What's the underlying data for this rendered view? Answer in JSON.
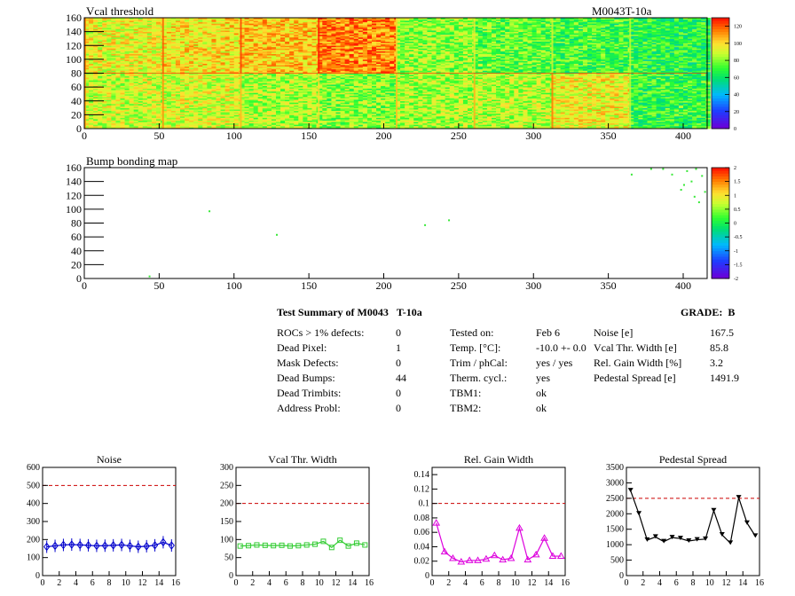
{
  "colors": {
    "map_red": "#e8481c",
    "map_yellow": "#f2e63a",
    "map_green": "#6ede2a",
    "noise_series": "#0000cc",
    "vcal_series": "#33cc33",
    "gain_series": "#dd00dd",
    "pedestal_series": "#000000",
    "limit_line": "#cc0000"
  },
  "module_id": "M0043T-10a",
  "summary": {
    "title": "Test Summary of M0043",
    "title_suffix": "T-10a",
    "grade_label": "GRADE:",
    "grade": "B",
    "left": [
      {
        "label": "ROCs > 1% defects:",
        "value": "0"
      },
      {
        "label": "Dead Pixel:",
        "value": "1"
      },
      {
        "label": "Mask Defects:",
        "value": "0"
      },
      {
        "label": "Dead Bumps:",
        "value": "44"
      },
      {
        "label": "Dead Trimbits:",
        "value": "0"
      },
      {
        "label": "Address Probl:",
        "value": "0"
      }
    ],
    "middle": [
      {
        "label": "Tested on:",
        "value": "Feb 6"
      },
      {
        "label": "Temp. [°C]:",
        "value": "-10.0 +- 0.0"
      },
      {
        "label": "Trim / phCal:",
        "value": "yes / yes"
      },
      {
        "label": "Therm. cycl.:",
        "value": "yes"
      },
      {
        "label": "TBM1:",
        "value": "ok"
      },
      {
        "label": "TBM2:",
        "value": "ok"
      }
    ],
    "right": [
      {
        "label": "Noise [e]",
        "value": "167.5"
      },
      {
        "label": "Vcal Thr. Width [e]",
        "value": "85.8"
      },
      {
        "label": "Rel. Gain Width [%]",
        "value": "3.2"
      },
      {
        "label": "Pedestal Spread [e]",
        "value": "1491.9"
      }
    ]
  },
  "chart_data": [
    {
      "type": "heatmap",
      "title": "Vcal threshold",
      "x_ticks": [
        "0",
        "50",
        "100",
        "150",
        "200",
        "250",
        "300",
        "350",
        "400"
      ],
      "y_ticks": [
        "0",
        "20",
        "40",
        "60",
        "80",
        "100",
        "120",
        "140",
        "160"
      ],
      "xlim": [
        0,
        416
      ],
      "ylim": [
        0,
        160
      ],
      "zlim": [
        0,
        130
      ],
      "z_ticks": [
        "0",
        "20",
        "40",
        "60",
        "80",
        "100",
        "120"
      ],
      "roc_mean_levels": {
        "bottom_row": [
          90,
          92,
          86,
          80,
          85,
          87,
          96,
          70
        ],
        "top_row": [
          95,
          100,
          104,
          115,
          82,
          76,
          72,
          68
        ]
      }
    },
    {
      "type": "heatmap",
      "title": "Bump bonding map",
      "x_ticks": [
        "0",
        "50",
        "100",
        "150",
        "200",
        "250",
        "300",
        "350",
        "400"
      ],
      "y_ticks": [
        "0",
        "20",
        "40",
        "60",
        "80",
        "100",
        "120",
        "140",
        "160"
      ],
      "xlim": [
        0,
        416
      ],
      "ylim": [
        0,
        160
      ],
      "zlim": [
        -2,
        2
      ],
      "z_ticks": [
        "-2",
        "-1.5",
        "-1",
        "-0.5",
        "0",
        "0.5",
        "1",
        "1.5",
        "2"
      ],
      "points": [
        [
          43,
          3
        ],
        [
          83,
          97
        ],
        [
          128,
          63
        ],
        [
          227,
          77
        ],
        [
          243,
          84
        ],
        [
          365,
          150
        ],
        [
          378,
          158
        ],
        [
          386,
          158
        ],
        [
          392,
          150
        ],
        [
          400,
          135
        ],
        [
          402,
          155
        ],
        [
          405,
          140
        ],
        [
          408,
          158
        ],
        [
          410,
          110
        ],
        [
          398,
          128
        ],
        [
          412,
          148
        ],
        [
          414,
          125
        ],
        [
          407,
          118
        ]
      ]
    },
    {
      "type": "line",
      "title": "Noise",
      "x_ticks": [
        "0",
        "2",
        "4",
        "6",
        "8",
        "10",
        "12",
        "14",
        "16"
      ],
      "y_ticks": [
        "0",
        "100",
        "200",
        "300",
        "400",
        "500",
        "600"
      ],
      "xlim": [
        0,
        16
      ],
      "ylim": [
        0,
        600
      ],
      "limit": 500,
      "series": [
        {
          "x": [
            0.5,
            1.5,
            2.5,
            3.5,
            4.5,
            5.5,
            6.5,
            7.5,
            8.5,
            9.5,
            10.5,
            11.5,
            12.5,
            13.5,
            14.5,
            15.5
          ],
          "values": [
            160,
            165,
            170,
            172,
            170,
            168,
            165,
            166,
            168,
            170,
            165,
            160,
            163,
            168,
            185,
            167
          ]
        }
      ]
    },
    {
      "type": "line",
      "title": "Vcal Thr. Width",
      "x_ticks": [
        "0",
        "2",
        "4",
        "6",
        "8",
        "10",
        "12",
        "14",
        "16"
      ],
      "y_ticks": [
        "0",
        "50",
        "100",
        "150",
        "200",
        "250",
        "300"
      ],
      "xlim": [
        0,
        16
      ],
      "ylim": [
        0,
        300
      ],
      "limit": 200,
      "series": [
        {
          "x": [
            0.5,
            1.5,
            2.5,
            3.5,
            4.5,
            5.5,
            6.5,
            7.5,
            8.5,
            9.5,
            10.5,
            11.5,
            12.5,
            13.5,
            14.5,
            15.5
          ],
          "values": [
            82,
            83,
            85,
            84,
            83,
            84,
            82,
            83,
            85,
            87,
            95,
            78,
            98,
            82,
            90,
            85
          ]
        }
      ]
    },
    {
      "type": "line",
      "title": "Rel. Gain Width",
      "x_ticks": [
        "0",
        "2",
        "4",
        "6",
        "8",
        "10",
        "12",
        "14",
        "16"
      ],
      "y_ticks": [
        "0",
        "0.02",
        "0.04",
        "0.06",
        "0.08",
        "0.1",
        "0.12",
        "0.14"
      ],
      "xlim": [
        0,
        16
      ],
      "ylim": [
        0,
        0.15
      ],
      "limit": 0.1,
      "series": [
        {
          "x": [
            0.5,
            1.5,
            2.5,
            3.5,
            4.5,
            5.5,
            6.5,
            7.5,
            8.5,
            9.5,
            10.5,
            11.5,
            12.5,
            13.5,
            14.5,
            15.5
          ],
          "values": [
            0.073,
            0.033,
            0.024,
            0.019,
            0.021,
            0.021,
            0.023,
            0.028,
            0.022,
            0.024,
            0.066,
            0.022,
            0.029,
            0.052,
            0.027,
            0.027
          ]
        }
      ]
    },
    {
      "type": "line",
      "title": "Pedestal Spread",
      "x_ticks": [
        "0",
        "2",
        "4",
        "6",
        "8",
        "10",
        "12",
        "14",
        "16"
      ],
      "y_ticks": [
        "0",
        "500",
        "1000",
        "1500",
        "2000",
        "2500",
        "3000",
        "3500"
      ],
      "xlim": [
        0,
        16
      ],
      "ylim": [
        0,
        3500
      ],
      "limit": 2500,
      "series": [
        {
          "x": [
            0.5,
            1.5,
            2.5,
            3.5,
            4.5,
            5.5,
            6.5,
            7.5,
            8.5,
            9.5,
            10.5,
            11.5,
            12.5,
            13.5,
            14.5,
            15.5
          ],
          "values": [
            2750,
            2000,
            1150,
            1250,
            1100,
            1230,
            1200,
            1120,
            1160,
            1180,
            2100,
            1320,
            1050,
            2520,
            1700,
            1280
          ]
        }
      ]
    }
  ]
}
